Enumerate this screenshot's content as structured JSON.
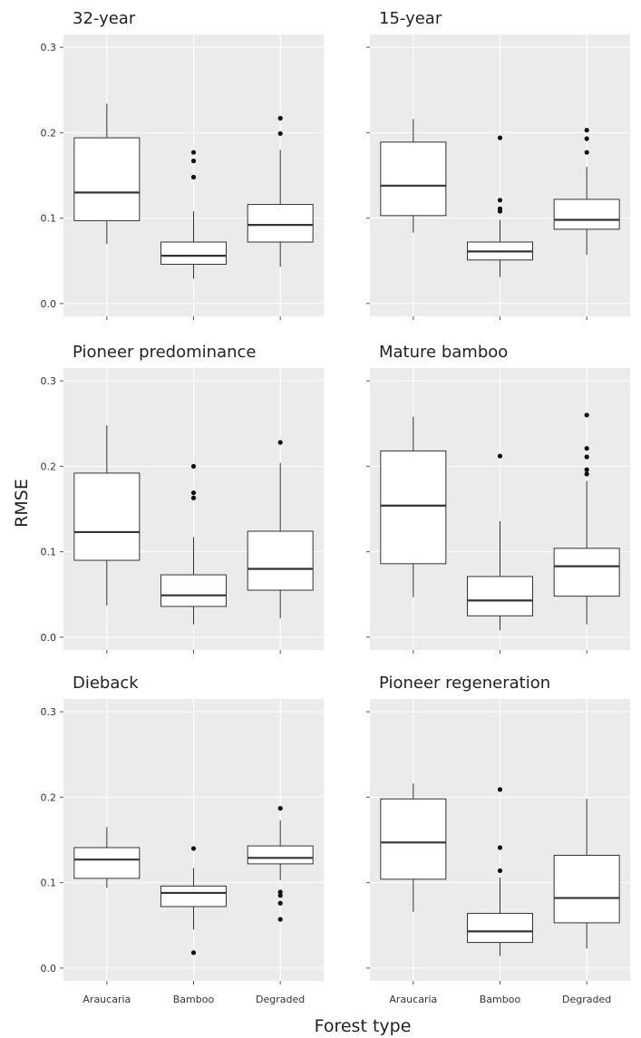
{
  "figure": {
    "ylabel": "RMSE",
    "xlabel": "Forest type"
  },
  "chart_data": {
    "type": "boxplot",
    "categories": [
      "Araucaria",
      "Bamboo",
      "Degraded"
    ],
    "yticks": [
      "0.0",
      "0.1",
      "0.2",
      "0.3"
    ],
    "ylim": [
      -0.015,
      0.315
    ],
    "grid": true,
    "colors": {
      "panel_bg": "#ebebeb",
      "grid": "#ffffff",
      "box_fill": "#ffffff",
      "stroke": "#333333"
    },
    "panels": [
      {
        "title": "32-year",
        "boxes": [
          {
            "category": "Araucaria",
            "whisker_low": 0.07,
            "q1": 0.097,
            "median": 0.13,
            "q3": 0.194,
            "whisker_high": 0.234,
            "outliers": []
          },
          {
            "category": "Bamboo",
            "whisker_low": 0.029,
            "q1": 0.046,
            "median": 0.056,
            "q3": 0.072,
            "whisker_high": 0.108,
            "outliers": [
              0.148,
              0.167,
              0.177
            ]
          },
          {
            "category": "Degraded",
            "whisker_low": 0.043,
            "q1": 0.072,
            "median": 0.092,
            "q3": 0.116,
            "whisker_high": 0.18,
            "outliers": [
              0.199,
              0.217
            ]
          }
        ]
      },
      {
        "title": "15-year",
        "boxes": [
          {
            "category": "Araucaria",
            "whisker_low": 0.083,
            "q1": 0.103,
            "median": 0.138,
            "q3": 0.189,
            "whisker_high": 0.216,
            "outliers": []
          },
          {
            "category": "Bamboo",
            "whisker_low": 0.031,
            "q1": 0.051,
            "median": 0.061,
            "q3": 0.072,
            "whisker_high": 0.098,
            "outliers": [
              0.108,
              0.111,
              0.121,
              0.194
            ]
          },
          {
            "category": "Degraded",
            "whisker_low": 0.057,
            "q1": 0.087,
            "median": 0.098,
            "q3": 0.122,
            "whisker_high": 0.16,
            "outliers": [
              0.177,
              0.193,
              0.203
            ]
          }
        ]
      },
      {
        "title": "Pioneer predominance",
        "boxes": [
          {
            "category": "Araucaria",
            "whisker_low": 0.037,
            "q1": 0.09,
            "median": 0.123,
            "q3": 0.192,
            "whisker_high": 0.248,
            "outliers": []
          },
          {
            "category": "Bamboo",
            "whisker_low": 0.015,
            "q1": 0.036,
            "median": 0.049,
            "q3": 0.073,
            "whisker_high": 0.117,
            "outliers": [
              0.163,
              0.169,
              0.2
            ]
          },
          {
            "category": "Degraded",
            "whisker_low": 0.022,
            "q1": 0.055,
            "median": 0.08,
            "q3": 0.124,
            "whisker_high": 0.204,
            "outliers": [
              0.228
            ]
          }
        ]
      },
      {
        "title": "Mature bamboo",
        "boxes": [
          {
            "category": "Araucaria",
            "whisker_low": 0.047,
            "q1": 0.086,
            "median": 0.154,
            "q3": 0.218,
            "whisker_high": 0.258,
            "outliers": []
          },
          {
            "category": "Bamboo",
            "whisker_low": 0.008,
            "q1": 0.025,
            "median": 0.043,
            "q3": 0.071,
            "whisker_high": 0.136,
            "outliers": [
              0.212
            ]
          },
          {
            "category": "Degraded",
            "whisker_low": 0.015,
            "q1": 0.048,
            "median": 0.083,
            "q3": 0.104,
            "whisker_high": 0.183,
            "outliers": [
              0.191,
              0.196,
              0.211,
              0.221,
              0.26
            ]
          }
        ]
      },
      {
        "title": "Dieback",
        "boxes": [
          {
            "category": "Araucaria",
            "whisker_low": 0.094,
            "q1": 0.105,
            "median": 0.127,
            "q3": 0.141,
            "whisker_high": 0.165,
            "outliers": []
          },
          {
            "category": "Bamboo",
            "whisker_low": 0.045,
            "q1": 0.072,
            "median": 0.088,
            "q3": 0.096,
            "whisker_high": 0.117,
            "outliers": [
              0.018,
              0.14
            ]
          },
          {
            "category": "Degraded",
            "whisker_low": 0.103,
            "q1": 0.122,
            "median": 0.129,
            "q3": 0.143,
            "whisker_high": 0.173,
            "outliers": [
              0.057,
              0.076,
              0.085,
              0.089,
              0.187
            ]
          }
        ]
      },
      {
        "title": "Pioneer regeneration",
        "boxes": [
          {
            "category": "Araucaria",
            "whisker_low": 0.066,
            "q1": 0.104,
            "median": 0.147,
            "q3": 0.198,
            "whisker_high": 0.216,
            "outliers": []
          },
          {
            "category": "Bamboo",
            "whisker_low": 0.014,
            "q1": 0.03,
            "median": 0.043,
            "q3": 0.064,
            "whisker_high": 0.106,
            "outliers": [
              0.114,
              0.141,
              0.209
            ]
          },
          {
            "category": "Degraded",
            "whisker_low": 0.023,
            "q1": 0.053,
            "median": 0.082,
            "q3": 0.132,
            "whisker_high": 0.198,
            "outliers": []
          }
        ]
      }
    ]
  }
}
